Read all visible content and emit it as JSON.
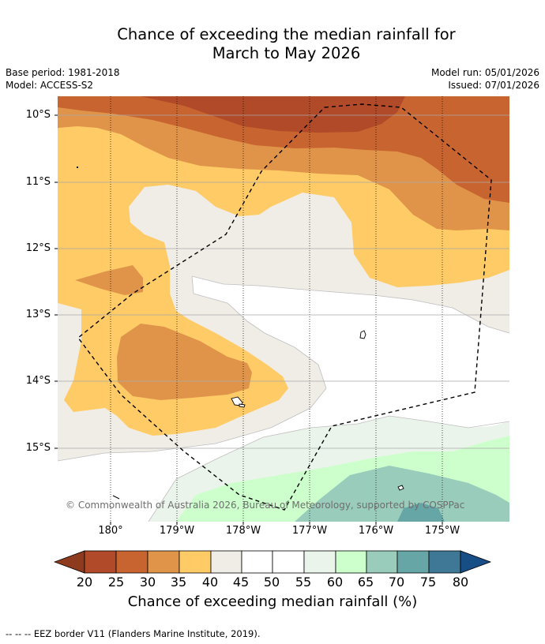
{
  "title": {
    "line1": "Chance of exceeding the median rainfall for",
    "line2": "March to May 2026"
  },
  "meta": {
    "base_period": "Base period: 1981-2018",
    "model": "Model: ACCESS-S2",
    "model_run": "Model run: 05/01/2026",
    "issued": "Issued: 07/01/2026"
  },
  "axes": {
    "lat_labels": [
      "10°S",
      "11°S",
      "12°S",
      "13°S",
      "14°S",
      "15°S"
    ],
    "lon_labels": [
      "180°",
      "179°W",
      "178°W",
      "177°W",
      "176°W",
      "175°W"
    ]
  },
  "colorbar": {
    "ticks": [
      "20",
      "25",
      "30",
      "35",
      "40",
      "45",
      "50",
      "55",
      "60",
      "65",
      "70",
      "75",
      "80"
    ],
    "colors": [
      "#b04a28",
      "#c8642f",
      "#e0944a",
      "#ffcb66",
      "#f0ece6",
      "#ffffff",
      "#ffffff",
      "#eaf4ea",
      "#ccffcc",
      "#99ccbb",
      "#66a6a6",
      "#3f7896"
    ],
    "under_color": "#8e3a1e",
    "over_color": "#174e86",
    "label": "Chance of exceeding median rainfall (%)"
  },
  "credit": "© Commonwealth of Australia 2026, Bureau of Meteorology, supported by COSPPac",
  "footer": "--  --  -- EEZ border V11 (Flanders Marine Institute, 2019)."
}
